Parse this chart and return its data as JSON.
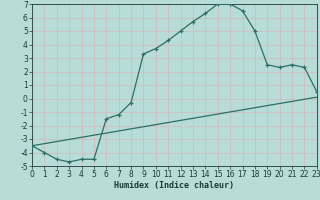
{
  "xlabel": "Humidex (Indice chaleur)",
  "bg_color": "#b8ddd8",
  "grid_color": "#d4eeea",
  "line_color": "#2d6e66",
  "xlim": [
    0,
    23
  ],
  "ylim": [
    -5,
    7
  ],
  "xticks": [
    0,
    1,
    2,
    3,
    4,
    5,
    6,
    7,
    8,
    9,
    10,
    11,
    12,
    13,
    14,
    15,
    16,
    17,
    18,
    19,
    20,
    21,
    22,
    23
  ],
  "yticks": [
    -5,
    -4,
    -3,
    -2,
    -1,
    0,
    1,
    2,
    3,
    4,
    5,
    6,
    7
  ],
  "curve1_x": [
    0,
    1,
    2,
    3,
    4,
    5,
    6,
    7,
    8,
    9,
    10,
    11,
    12,
    13,
    14,
    15,
    16,
    17,
    18,
    19,
    20,
    21,
    22,
    23
  ],
  "curve1_y": [
    -3.5,
    -4.0,
    -4.5,
    -4.7,
    -4.5,
    -4.5,
    -1.5,
    -1.2,
    -0.3,
    3.3,
    3.7,
    4.3,
    5.0,
    5.7,
    6.3,
    7.0,
    7.0,
    6.5,
    5.0,
    2.5,
    2.3,
    2.5,
    2.3,
    0.5
  ],
  "curve2_x": [
    0,
    23
  ],
  "curve2_y": [
    -3.5,
    0.1
  ],
  "tick_fontsize": 5.5,
  "xlabel_fontsize": 6.0,
  "tick_color": "#1a3a36",
  "spine_color": "#1a3a36",
  "linewidth": 0.9,
  "marker_size": 3.5
}
